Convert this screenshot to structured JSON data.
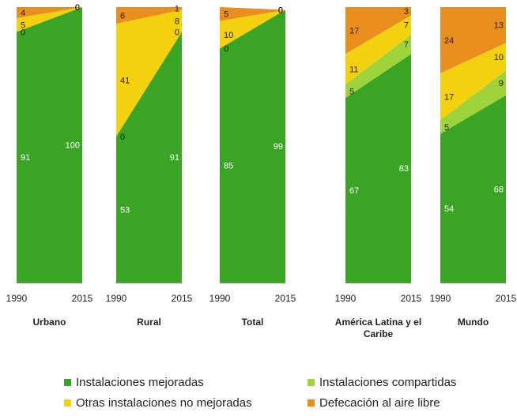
{
  "colors": {
    "Instalaciones mejoradas": "#3aa524",
    "Instalaciones compartidas": "#9fd33c",
    "Otras instalaciones no mejoradas": "#f4d10f",
    "Defecación al aire libre": "#e98d1c"
  },
  "chart_data": {
    "type": "area",
    "ylim": [
      0,
      100
    ],
    "grid": false,
    "legend_position": "bottom",
    "x": [
      "1990",
      "2015"
    ],
    "series_order": [
      "Instalaciones mejoradas",
      "Instalaciones compartidas",
      "Otras instalaciones no mejoradas",
      "Defecación al aire libre"
    ],
    "panels": [
      {
        "title": "Urbano",
        "values": {
          "Instalaciones mejoradas": [
            91,
            100
          ],
          "Instalaciones compartidas": [
            0,
            0
          ],
          "Otras instalaciones no mejoradas": [
            5,
            0
          ],
          "Defecación al aire libre": [
            4,
            0
          ]
        }
      },
      {
        "title": "Rural",
        "values": {
          "Instalaciones mejoradas": [
            53,
            91
          ],
          "Instalaciones compartidas": [
            0,
            0
          ],
          "Otras instalaciones no mejoradas": [
            41,
            8
          ],
          "Defecación al aire libre": [
            6,
            1
          ]
        }
      },
      {
        "title": "Total",
        "values": {
          "Instalaciones mejoradas": [
            85,
            99
          ],
          "Instalaciones compartidas": [
            0,
            0
          ],
          "Otras instalaciones no mejoradas": [
            10,
            0
          ],
          "Defecación al aire libre": [
            5,
            0
          ]
        }
      },
      {
        "title": "América Latina y el Caribe",
        "values": {
          "Instalaciones mejoradas": [
            67,
            83
          ],
          "Instalaciones compartidas": [
            5,
            7
          ],
          "Otras instalaciones no mejoradas": [
            11,
            7
          ],
          "Defecación al aire libre": [
            17,
            3
          ]
        }
      },
      {
        "title": "Mundo",
        "values": {
          "Instalaciones mejoradas": [
            54,
            68
          ],
          "Instalaciones compartidas": [
            5,
            9
          ],
          "Otras instalaciones no mejoradas": [
            17,
            10
          ],
          "Defecación al aire libre": [
            24,
            13
          ]
        }
      }
    ],
    "legend": [
      "Instalaciones mejoradas",
      "Instalaciones compartidas",
      "Otras instalaciones no mejoradas",
      "Defecación al aire libre"
    ]
  }
}
